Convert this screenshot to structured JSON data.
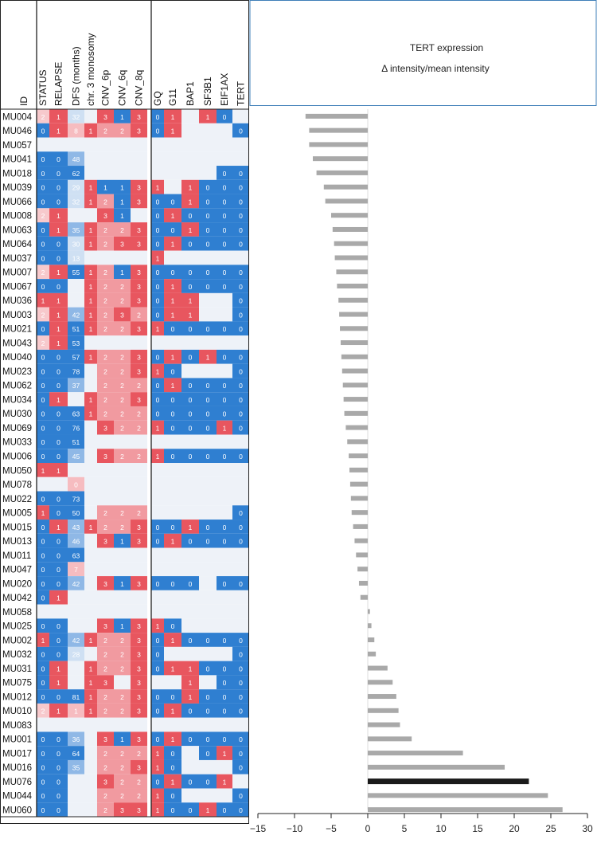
{
  "chart_data": {
    "type": "heatmap",
    "columns": [
      "STATUS",
      "RELAPSE",
      "DFS (months)",
      "chr. 3 monosomy",
      "CNV_6p",
      "CNV_6q",
      "CNV_8q",
      "GQ",
      "G11",
      "BAP1",
      "SF3B1",
      "EIF1AX",
      "TERT"
    ],
    "id_header": "ID",
    "samples": [
      {
        "id": "MU004",
        "cells": [
          "2",
          "1",
          "32",
          "",
          "3",
          "1",
          "3",
          "0",
          "1",
          "",
          "1",
          "0",
          ""
        ],
        "tert": -8.5,
        "highlight": false
      },
      {
        "id": "MU046",
        "cells": [
          "0",
          "1",
          "8",
          "1",
          "2",
          "2",
          "3",
          "0",
          "1",
          "",
          "",
          "",
          "0"
        ],
        "tert": -8.0,
        "highlight": false
      },
      {
        "id": "MU057",
        "cells": [
          "",
          "",
          "",
          "",
          "",
          "",
          "",
          "",
          "",
          "",
          "",
          "",
          ""
        ],
        "tert": -8.0,
        "highlight": false
      },
      {
        "id": "MU041",
        "cells": [
          "0",
          "0",
          "48",
          "",
          "",
          "",
          "",
          "",
          "",
          "",
          "",
          "",
          ""
        ],
        "tert": -7.5,
        "highlight": false
      },
      {
        "id": "MU018",
        "cells": [
          "0",
          "0",
          "62",
          "",
          "",
          "",
          "",
          "",
          "",
          "",
          "",
          "0",
          "0"
        ],
        "tert": -7.0,
        "highlight": false
      },
      {
        "id": "MU039",
        "cells": [
          "0",
          "0",
          "29",
          "1",
          "1",
          "1",
          "3",
          "1",
          "",
          "1",
          "0",
          "0",
          "0"
        ],
        "tert": -6.0,
        "highlight": false
      },
      {
        "id": "MU066",
        "cells": [
          "0",
          "0",
          "32",
          "1",
          "2",
          "1",
          "3",
          "0",
          "0",
          "1",
          "0",
          "0",
          "0"
        ],
        "tert": -5.8,
        "highlight": false
      },
      {
        "id": "MU008",
        "cells": [
          "2",
          "1",
          "",
          "",
          "3",
          "1",
          "",
          "0",
          "1",
          "0",
          "0",
          "0",
          "0"
        ],
        "tert": -5.0,
        "highlight": false
      },
      {
        "id": "MU063",
        "cells": [
          "0",
          "1",
          "35",
          "1",
          "2",
          "2",
          "3",
          "0",
          "0",
          "1",
          "0",
          "0",
          "0"
        ],
        "tert": -4.8,
        "highlight": false
      },
      {
        "id": "MU064",
        "cells": [
          "0",
          "0",
          "30",
          "1",
          "2",
          "3",
          "3",
          "0",
          "1",
          "0",
          "0",
          "0",
          "0"
        ],
        "tert": -4.6,
        "highlight": false
      },
      {
        "id": "MU037",
        "cells": [
          "0",
          "0",
          "13",
          "",
          "",
          "",
          "",
          "1",
          "",
          "",
          "",
          "",
          ""
        ],
        "tert": -4.5,
        "highlight": false
      },
      {
        "id": "MU007",
        "cells": [
          "2",
          "1",
          "55",
          "1",
          "2",
          "1",
          "3",
          "0",
          "0",
          "0",
          "0",
          "0",
          "0"
        ],
        "tert": -4.3,
        "highlight": false
      },
      {
        "id": "MU067",
        "cells": [
          "0",
          "0",
          "",
          "1",
          "2",
          "2",
          "3",
          "0",
          "1",
          "0",
          "0",
          "0",
          "0"
        ],
        "tert": -4.2,
        "highlight": false
      },
      {
        "id": "MU036",
        "cells": [
          "1",
          "1",
          "",
          "1",
          "2",
          "2",
          "3",
          "0",
          "1",
          "1",
          "",
          "",
          "0"
        ],
        "tert": -4.0,
        "highlight": false
      },
      {
        "id": "MU003",
        "cells": [
          "2",
          "1",
          "42",
          "1",
          "2",
          "3",
          "2",
          "0",
          "1",
          "1",
          "",
          "",
          "0"
        ],
        "tert": -3.9,
        "highlight": false
      },
      {
        "id": "MU021",
        "cells": [
          "0",
          "1",
          "51",
          "1",
          "2",
          "2",
          "3",
          "1",
          "0",
          "0",
          "0",
          "0",
          "0"
        ],
        "tert": -3.8,
        "highlight": false
      },
      {
        "id": "MU043",
        "cells": [
          "2",
          "1",
          "53",
          "",
          "",
          "",
          "",
          "",
          "",
          "",
          "",
          "",
          ""
        ],
        "tert": -3.7,
        "highlight": false
      },
      {
        "id": "MU040",
        "cells": [
          "0",
          "0",
          "57",
          "1",
          "2",
          "2",
          "3",
          "0",
          "1",
          "0",
          "1",
          "0",
          "0"
        ],
        "tert": -3.6,
        "highlight": false
      },
      {
        "id": "MU023",
        "cells": [
          "0",
          "0",
          "78",
          "",
          "2",
          "2",
          "3",
          "1",
          "0",
          "",
          "",
          "",
          "0"
        ],
        "tert": -3.5,
        "highlight": false
      },
      {
        "id": "MU062",
        "cells": [
          "0",
          "0",
          "37",
          "",
          "2",
          "2",
          "2",
          "0",
          "1",
          "0",
          "0",
          "0",
          "0"
        ],
        "tert": -3.4,
        "highlight": false
      },
      {
        "id": "MU034",
        "cells": [
          "0",
          "1",
          "",
          "1",
          "2",
          "2",
          "3",
          "0",
          "0",
          "0",
          "0",
          "0",
          "0"
        ],
        "tert": -3.3,
        "highlight": false
      },
      {
        "id": "MU030",
        "cells": [
          "0",
          "0",
          "63",
          "1",
          "2",
          "2",
          "2",
          "0",
          "0",
          "0",
          "0",
          "0",
          "0"
        ],
        "tert": -3.2,
        "highlight": false
      },
      {
        "id": "MU069",
        "cells": [
          "0",
          "0",
          "76",
          "",
          "3",
          "2",
          "2",
          "1",
          "0",
          "0",
          "0",
          "1",
          "0"
        ],
        "tert": -3.0,
        "highlight": false
      },
      {
        "id": "MU033",
        "cells": [
          "0",
          "0",
          "51",
          "",
          "",
          "",
          "",
          "",
          "",
          "",
          "",
          "",
          ""
        ],
        "tert": -2.8,
        "highlight": false
      },
      {
        "id": "MU006",
        "cells": [
          "0",
          "0",
          "45",
          "",
          "3",
          "2",
          "2",
          "1",
          "0",
          "0",
          "0",
          "0",
          "0"
        ],
        "tert": -2.6,
        "highlight": false
      },
      {
        "id": "MU050",
        "cells": [
          "1",
          "1",
          "",
          "",
          "",
          "",
          "",
          "",
          "",
          "",
          "",
          "",
          ""
        ],
        "tert": -2.5,
        "highlight": false
      },
      {
        "id": "MU078",
        "cells": [
          "",
          "",
          "0",
          "",
          "",
          "",
          "",
          "",
          "",
          "",
          "",
          "",
          ""
        ],
        "tert": -2.4,
        "highlight": false
      },
      {
        "id": "MU022",
        "cells": [
          "0",
          "0",
          "73",
          "",
          "",
          "",
          "",
          "",
          "",
          "",
          "",
          "",
          ""
        ],
        "tert": -2.3,
        "highlight": false
      },
      {
        "id": "MU005",
        "cells": [
          "1",
          "0",
          "50",
          "",
          "2",
          "2",
          "2",
          "",
          "",
          "",
          "",
          "",
          "0"
        ],
        "tert": -2.2,
        "highlight": false
      },
      {
        "id": "MU015",
        "cells": [
          "0",
          "1",
          "43",
          "1",
          "2",
          "2",
          "3",
          "0",
          "0",
          "1",
          "0",
          "0",
          "0"
        ],
        "tert": -2.0,
        "highlight": false
      },
      {
        "id": "MU013",
        "cells": [
          "0",
          "0",
          "46",
          "",
          "3",
          "1",
          "3",
          "0",
          "1",
          "0",
          "0",
          "0",
          "0"
        ],
        "tert": -1.8,
        "highlight": false
      },
      {
        "id": "MU011",
        "cells": [
          "0",
          "0",
          "63",
          "",
          "",
          "",
          "",
          "",
          "",
          "",
          "",
          "",
          ""
        ],
        "tert": -1.6,
        "highlight": false
      },
      {
        "id": "MU047",
        "cells": [
          "0",
          "0",
          "7",
          "",
          "",
          "",
          "",
          "",
          "",
          "",
          "",
          "",
          ""
        ],
        "tert": -1.4,
        "highlight": false
      },
      {
        "id": "MU020",
        "cells": [
          "0",
          "0",
          "42",
          "",
          "3",
          "1",
          "3",
          "0",
          "0",
          "0",
          "",
          "0",
          "0"
        ],
        "tert": -1.2,
        "highlight": false
      },
      {
        "id": "MU042",
        "cells": [
          "0",
          "1",
          "",
          "",
          "",
          "",
          "",
          "",
          "",
          "",
          "",
          "",
          ""
        ],
        "tert": -1.0,
        "highlight": false
      },
      {
        "id": "MU058",
        "cells": [
          "",
          "",
          "",
          "",
          "",
          "",
          "",
          "",
          "",
          "",
          "",
          "",
          ""
        ],
        "tert": 0.3,
        "highlight": false
      },
      {
        "id": "MU025",
        "cells": [
          "0",
          "0",
          "",
          "",
          "3",
          "1",
          "3",
          "1",
          "0",
          "",
          "",
          "",
          ""
        ],
        "tert": 0.5,
        "highlight": false
      },
      {
        "id": "MU002",
        "cells": [
          "1",
          "0",
          "42",
          "1",
          "2",
          "2",
          "3",
          "0",
          "1",
          "0",
          "0",
          "0",
          "0"
        ],
        "tert": 0.9,
        "highlight": false
      },
      {
        "id": "MU032",
        "cells": [
          "0",
          "0",
          "28",
          "",
          "2",
          "2",
          "3",
          "0",
          "",
          "",
          "",
          "",
          "0"
        ],
        "tert": 1.1,
        "highlight": false
      },
      {
        "id": "MU031",
        "cells": [
          "0",
          "1",
          "",
          "1",
          "2",
          "2",
          "3",
          "0",
          "1",
          "1",
          "0",
          "0",
          "0"
        ],
        "tert": 2.7,
        "highlight": false
      },
      {
        "id": "MU075",
        "cells": [
          "0",
          "1",
          "",
          "1",
          "3",
          "",
          "3",
          "",
          "",
          "1",
          "",
          "0",
          "0"
        ],
        "tert": 3.4,
        "highlight": false
      },
      {
        "id": "MU012",
        "cells": [
          "0",
          "0",
          "81",
          "1",
          "2",
          "2",
          "3",
          "0",
          "0",
          "1",
          "0",
          "0",
          "0"
        ],
        "tert": 3.9,
        "highlight": false
      },
      {
        "id": "MU010",
        "cells": [
          "2",
          "1",
          "1",
          "1",
          "2",
          "2",
          "3",
          "0",
          "1",
          "0",
          "0",
          "0",
          "0"
        ],
        "tert": 4.2,
        "highlight": false
      },
      {
        "id": "MU083",
        "cells": [
          "",
          "",
          "",
          "",
          "",
          "",
          "",
          "",
          "",
          "",
          "",
          "",
          ""
        ],
        "tert": 4.4,
        "highlight": false
      },
      {
        "id": "MU001",
        "cells": [
          "0",
          "0",
          "36",
          "",
          "3",
          "1",
          "3",
          "0",
          "1",
          "0",
          "0",
          "0",
          "0"
        ],
        "tert": 6.0,
        "highlight": false
      },
      {
        "id": "MU017",
        "cells": [
          "0",
          "0",
          "64",
          "",
          "2",
          "2",
          "2",
          "1",
          "0",
          "",
          "0",
          "1",
          "0"
        ],
        "tert": 13.0,
        "highlight": false
      },
      {
        "id": "MU016",
        "cells": [
          "0",
          "0",
          "35",
          "",
          "2",
          "2",
          "3",
          "1",
          "0",
          "",
          "",
          "",
          "0"
        ],
        "tert": 18.7,
        "highlight": false
      },
      {
        "id": "MU076",
        "cells": [
          "0",
          "0",
          "",
          "",
          "3",
          "2",
          "2",
          "0",
          "1",
          "0",
          "0",
          "1",
          ""
        ],
        "tert": 22.0,
        "highlight": true
      },
      {
        "id": "MU044",
        "cells": [
          "0",
          "0",
          "",
          "",
          "2",
          "2",
          "2",
          "1",
          "0",
          "",
          "",
          "",
          "0"
        ],
        "tert": 24.6,
        "highlight": false
      },
      {
        "id": "MU060",
        "cells": [
          "0",
          "0",
          "",
          "",
          "2",
          "3",
          "3",
          "1",
          "0",
          "0",
          "1",
          "0",
          "0"
        ],
        "tert": 26.6,
        "highlight": false
      }
    ],
    "bar_title_1": "TERT expression",
    "bar_title_2": "Δ intensity/mean intensity",
    "xlim": [
      -15,
      30
    ],
    "xticks": [
      -15,
      -10,
      -5,
      0,
      5,
      10,
      15,
      20,
      25,
      30
    ],
    "xtick_labels": [
      "−15",
      "−10",
      "−5",
      "0",
      "5",
      "10",
      "15",
      "20",
      "25",
      "30"
    ],
    "bar_color": "#a9a9a9",
    "highlight_color": "#1a1a1a",
    "palette": {
      "blue": "#2f7fd1",
      "red": "#e8565f",
      "midred": "#f19aa0",
      "lightred": "#f7c9cc",
      "empty": "#eef2f8",
      "dfs_light": "#cfe0f3",
      "dfs_mid": "#8fb8e6",
      "dfs_pale": "#f6bcc0"
    }
  }
}
